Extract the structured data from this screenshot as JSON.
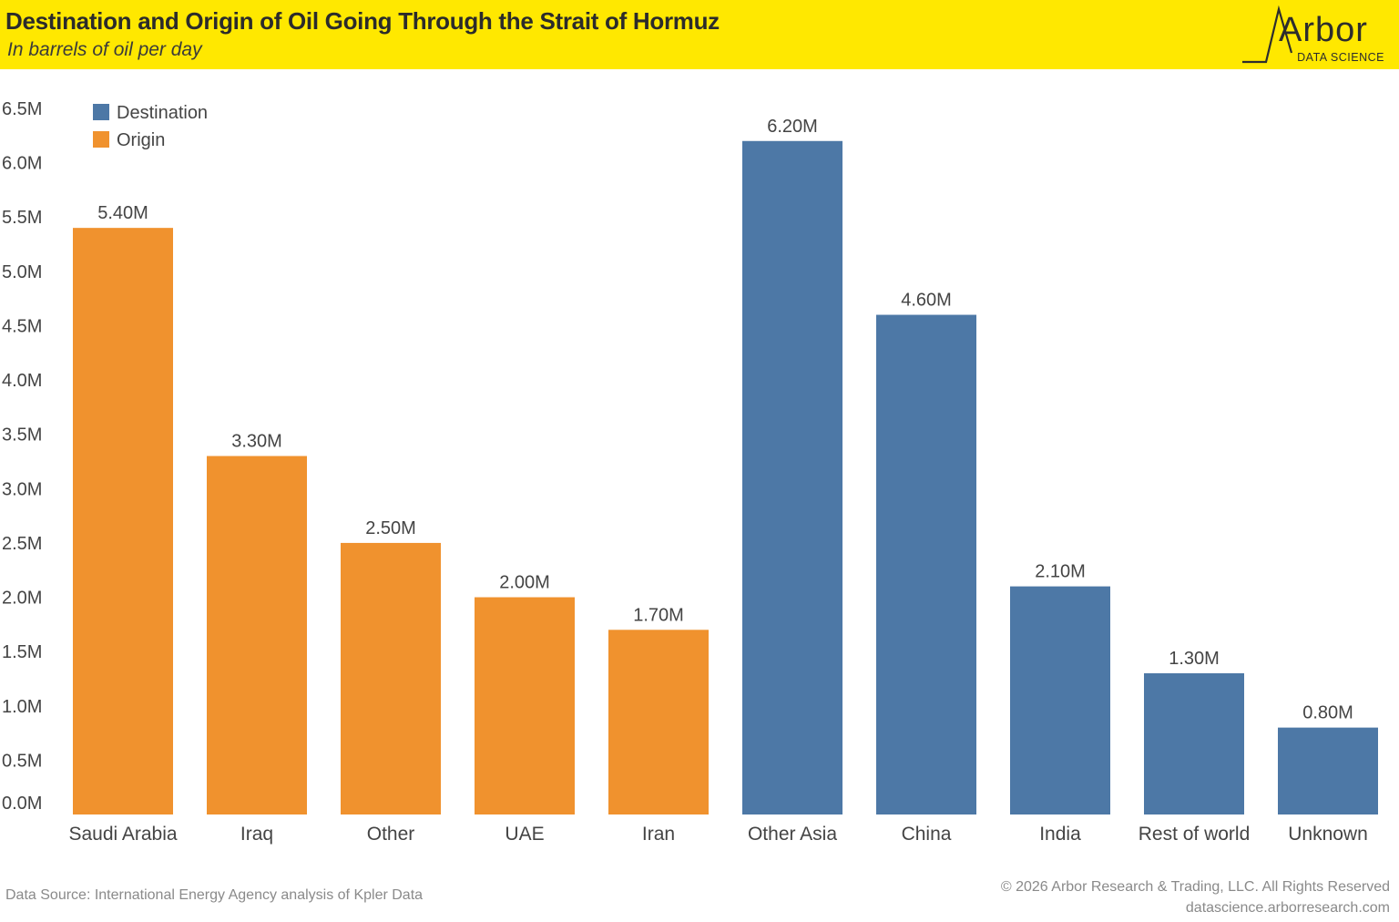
{
  "header": {
    "title": "Destination and Origin of Oil Going Through the Strait of Hormuz",
    "subtitle": "In barrels of oil per day",
    "logo_word": "Arbor",
    "logo_tagline": "DATA SCIENCE"
  },
  "footer": {
    "source": "Data Source: International Energy Agency analysis of Kpler Data",
    "copyright": "© 2026 Arbor Research & Trading, LLC. All Rights Reserved",
    "website": "datascience.arborresearch.com"
  },
  "colors": {
    "header_bg": "#ffe800",
    "origin": "#f0922e",
    "destination": "#4d78a6",
    "text": "#444444"
  },
  "chart_data": {
    "type": "bar",
    "title": "Destination and Origin of Oil Going Through the Strait of Hormuz",
    "subtitle": "In barrels of oil per day",
    "xlabel": "",
    "ylabel": "",
    "ylim": [
      0,
      6.5
    ],
    "yticks": [
      "0.0M",
      "0.5M",
      "1.0M",
      "1.5M",
      "2.0M",
      "2.5M",
      "3.0M",
      "3.5M",
      "4.0M",
      "4.5M",
      "5.0M",
      "5.5M",
      "6.0M",
      "6.5M"
    ],
    "grid": false,
    "legend": {
      "position": "top-left",
      "entries": [
        {
          "name": "Destination",
          "color": "#4d78a6"
        },
        {
          "name": "Origin",
          "color": "#f0922e"
        }
      ]
    },
    "categories": [
      "Saudi Arabia",
      "Iraq",
      "Other",
      "UAE",
      "Iran",
      "Other Asia",
      "China",
      "India",
      "Rest of world",
      "Unknown"
    ],
    "values": [
      5.4,
      3.3,
      2.5,
      2.0,
      1.7,
      6.2,
      4.6,
      2.1,
      1.3,
      0.8
    ],
    "value_labels": [
      "5.40M",
      "3.30M",
      "2.50M",
      "2.00M",
      "1.70M",
      "6.20M",
      "4.60M",
      "2.10M",
      "1.30M",
      "0.80M"
    ],
    "series_of_bar": [
      "Origin",
      "Origin",
      "Origin",
      "Origin",
      "Origin",
      "Destination",
      "Destination",
      "Destination",
      "Destination",
      "Destination"
    ]
  }
}
